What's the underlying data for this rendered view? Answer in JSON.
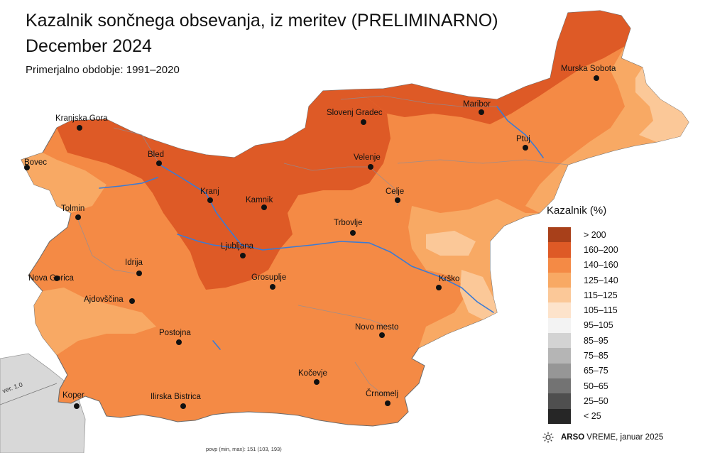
{
  "title_line1": "Kazalnik sončnega obsevanja, iz meritev (PRELIMINARNO)",
  "title_line2": "December 2024",
  "subtitle": "Primerjalno obdobje: 1991–2020",
  "legend_title": "Kazalnik (%)",
  "legend": [
    {
      "label": "> 200",
      "color": "#a8401a"
    },
    {
      "label": "160–200",
      "color": "#de5a26"
    },
    {
      "label": "140–160",
      "color": "#f48a45"
    },
    {
      "label": "125–140",
      "color": "#f8a964"
    },
    {
      "label": "115–125",
      "color": "#fbc898"
    },
    {
      "label": "105–115",
      "color": "#fde3cb"
    },
    {
      "label": "95–105",
      "color": "#f3f3f3"
    },
    {
      "label": "85–95",
      "color": "#d3d3d3"
    },
    {
      "label": "75–85",
      "color": "#b5b5b5"
    },
    {
      "label": "65–75",
      "color": "#969696"
    },
    {
      "label": "50–65",
      "color": "#737373"
    },
    {
      "label": "25–50",
      "color": "#4f4f4f"
    },
    {
      "label": "< 25",
      "color": "#262626"
    }
  ],
  "cities": [
    {
      "name": "Murska Sobota"
    },
    {
      "name": "Maribor"
    },
    {
      "name": "Slovenj Gradec"
    },
    {
      "name": "Ptuj"
    },
    {
      "name": "Kranjska Gora"
    },
    {
      "name": "Bled"
    },
    {
      "name": "Bovec"
    },
    {
      "name": "Velenje"
    },
    {
      "name": "Celje"
    },
    {
      "name": "Kranj"
    },
    {
      "name": "Kamnik"
    },
    {
      "name": "Tolmin"
    },
    {
      "name": "Trbovlje"
    },
    {
      "name": "Ljubljana"
    },
    {
      "name": "Idrija"
    },
    {
      "name": "Nova Gorica"
    },
    {
      "name": "Grosuplje"
    },
    {
      "name": "Krško"
    },
    {
      "name": "Ajdovščina"
    },
    {
      "name": "Novo mesto"
    },
    {
      "name": "Postojna"
    },
    {
      "name": "Kočevje"
    },
    {
      "name": "Koper"
    },
    {
      "name": "Ilirska Bistrica"
    },
    {
      "name": "Črnomelj"
    }
  ],
  "footer": {
    "brand": "ARSO",
    "rest": "VREME, januar 2025",
    "logo_icon": "sun-icon"
  },
  "version_label": "ver. 1.0",
  "stats_note": "povp (min, max): 151 (103, 193)",
  "colors": {
    "river": "#3a7bd5",
    "neighbour": "#d8d8d8",
    "border": "#6a6a6a"
  }
}
